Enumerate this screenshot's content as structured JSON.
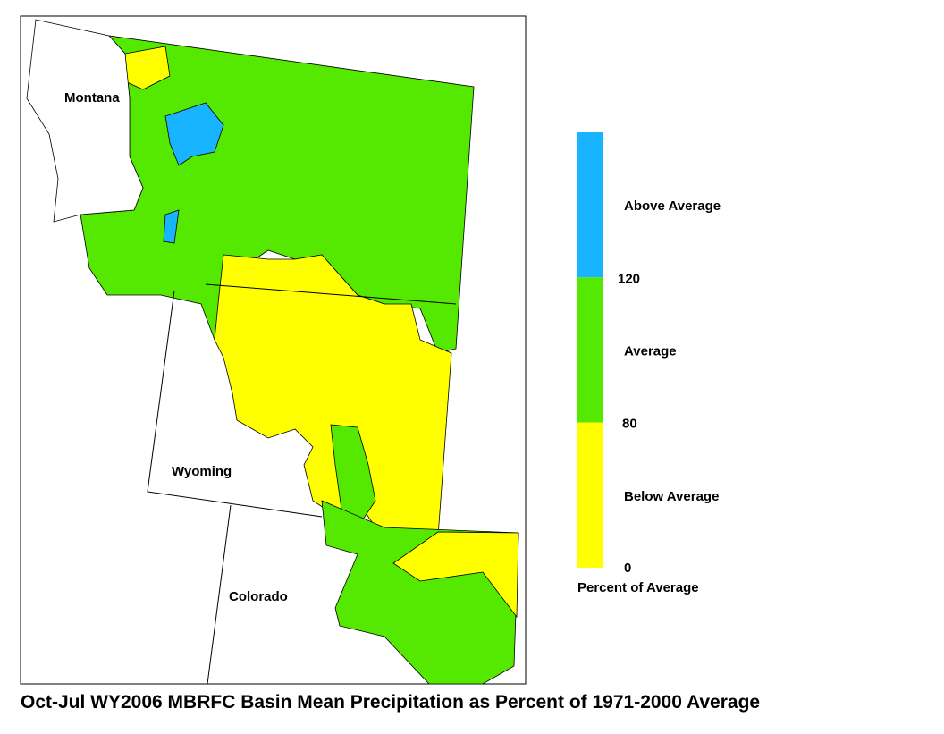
{
  "map": {
    "labels": [
      "Montana",
      "Wyoming",
      "Colorado"
    ]
  },
  "legend": {
    "classes": [
      {
        "label": "Above Average",
        "color": "#18b4ff"
      },
      {
        "label": "Average",
        "color": "#55e800"
      },
      {
        "label": "Below Average",
        "color": "#ffff00"
      }
    ],
    "breaks": [
      "120",
      "80",
      "0"
    ],
    "caption": "Percent of Average"
  },
  "title": "Oct-Jul WY2006 MBRFC Basin Mean Precipitation as Percent of 1971-2000 Average"
}
